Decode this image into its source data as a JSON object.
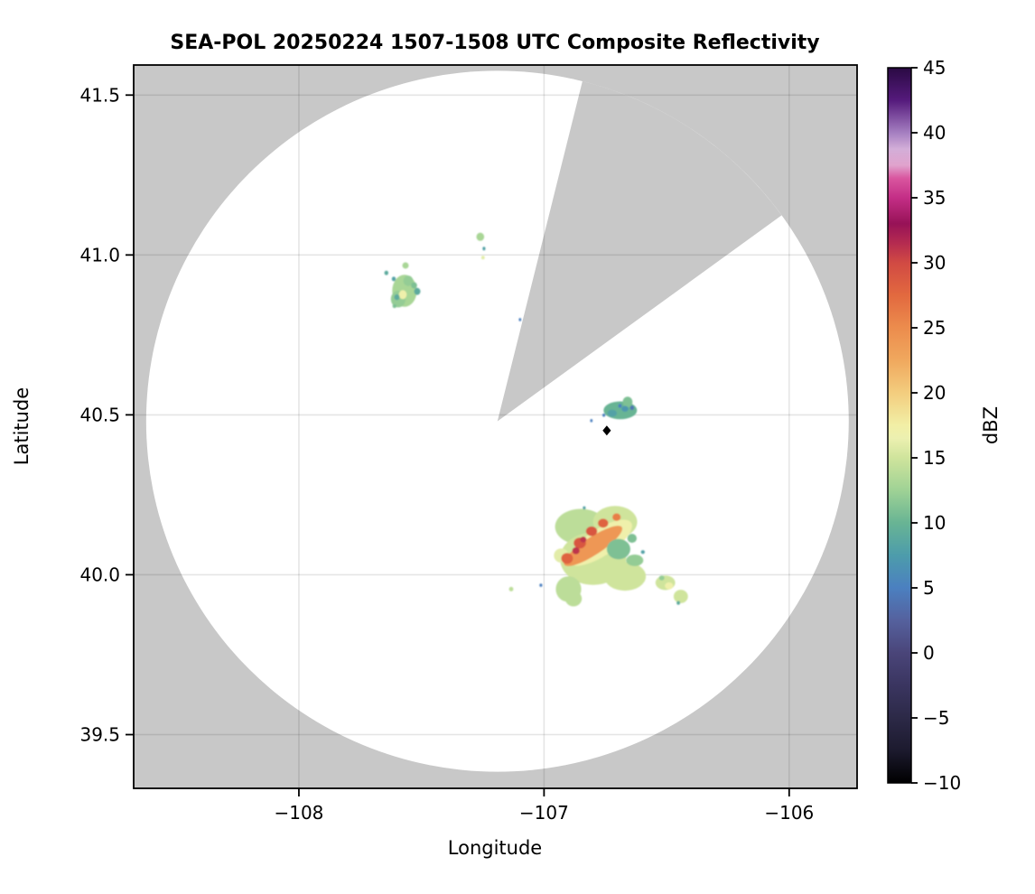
{
  "figure": {
    "title": "SEA-POL 20250224 1507-1508 UTC Composite Reflectivity",
    "xlabel": "Longitude",
    "ylabel": "Latitude",
    "colorbar_label": "dBZ"
  },
  "chart_data": {
    "type": "heatmap",
    "subtype": "radar-composite-reflectivity-map",
    "title": "SEA-POL 20250224 1507-1508 UTC Composite Reflectivity",
    "xlabel": "Longitude",
    "ylabel": "Latitude",
    "xlim": [
      -108.674,
      -105.723
    ],
    "ylim": [
      39.332,
      41.594
    ],
    "xticks": [
      -108,
      -107,
      -106
    ],
    "yticks": [
      41.5,
      41.0,
      40.5,
      40.0,
      39.5
    ],
    "grid": true,
    "colors": {
      "outside_range": "#c8c8c8",
      "coverage": "#ffffff",
      "gridline_rgba": "rgba(0,0,0,0.10)",
      "spine": "#000000"
    },
    "colorbar": {
      "label": "dBZ",
      "min": -10,
      "max": 45,
      "ticks": [
        45,
        40,
        35,
        30,
        25,
        20,
        15,
        10,
        5,
        0,
        -5,
        -10
      ],
      "stops": [
        [
          -10.0,
          "#000000"
        ],
        [
          -7.5,
          "#1c1a2e"
        ],
        [
          -5.0,
          "#2c2947"
        ],
        [
          -2.5,
          "#3a3560"
        ],
        [
          0.0,
          "#4a4579"
        ],
        [
          2.5,
          "#55619e"
        ],
        [
          5.0,
          "#4b80c0"
        ],
        [
          7.5,
          "#4d9cab"
        ],
        [
          10.0,
          "#68b494"
        ],
        [
          12.5,
          "#9fd295"
        ],
        [
          15.0,
          "#cfe49c"
        ],
        [
          16.5,
          "#ecf0b0"
        ],
        [
          17.5,
          "#f2efa6"
        ],
        [
          20.0,
          "#f3cd7e"
        ],
        [
          22.5,
          "#f0a85e"
        ],
        [
          25.0,
          "#ec8c4d"
        ],
        [
          27.5,
          "#e2693f"
        ],
        [
          30.0,
          "#d14a43"
        ],
        [
          31.5,
          "#b52b50"
        ],
        [
          33.0,
          "#971257"
        ],
        [
          35.0,
          "#c42e86"
        ],
        [
          36.5,
          "#d9569f"
        ],
        [
          37.5,
          "#e0a3cd"
        ],
        [
          38.75,
          "#d3aed8"
        ],
        [
          40.0,
          "#a57fc1"
        ],
        [
          42.5,
          "#551a7c"
        ],
        [
          45.0,
          "#2a0a43"
        ]
      ]
    },
    "radar": {
      "name": "SEA-POL",
      "lon": -107.19,
      "lat": 40.48,
      "range_lon_deg": 1.433,
      "range_lat_deg": 1.096,
      "blocked_sector_azimuth_deg": [
        14,
        54
      ]
    },
    "site_marker": {
      "shape": "diamond",
      "lon": -106.744,
      "lat": 40.451,
      "color": "#000000"
    },
    "echo_blob_format": [
      "lon",
      "lat",
      "radius_lon_deg",
      "radius_lat_deg",
      "dBZ",
      "rotation_deg_optional"
    ],
    "echoes": [
      {
        "name": "northwest-cells",
        "blobs": [
          [
            -107.569,
            40.888,
            0.05,
            0.05,
            13
          ],
          [
            -107.595,
            40.862,
            0.03,
            0.026,
            12
          ],
          [
            -107.554,
            40.919,
            0.02,
            0.016,
            12
          ],
          [
            -107.576,
            40.876,
            0.016,
            0.014,
            17
          ],
          [
            -107.6,
            40.868,
            0.011,
            0.009,
            9
          ],
          [
            -107.517,
            40.886,
            0.013,
            0.011,
            9
          ],
          [
            -107.53,
            40.905,
            0.012,
            0.01,
            11
          ],
          [
            -107.565,
            40.967,
            0.013,
            0.01,
            13
          ],
          [
            -107.643,
            40.944,
            0.008,
            0.007,
            9
          ],
          [
            -107.613,
            40.925,
            0.008,
            0.007,
            8
          ],
          [
            -107.61,
            40.84,
            0.008,
            0.006,
            11
          ]
        ]
      },
      {
        "name": "north-specks",
        "blobs": [
          [
            -107.26,
            41.057,
            0.016,
            0.013,
            13
          ],
          [
            -107.245,
            41.02,
            0.006,
            0.006,
            8
          ],
          [
            -107.249,
            40.992,
            0.007,
            0.006,
            16
          ],
          [
            -107.098,
            40.798,
            0.005,
            0.005,
            5
          ]
        ]
      },
      {
        "name": "central-small-cell",
        "blobs": [
          [
            -106.689,
            40.514,
            0.068,
            0.028,
            10
          ],
          [
            -106.659,
            40.54,
            0.02,
            0.017,
            11
          ],
          [
            -106.722,
            40.505,
            0.019,
            0.011,
            8
          ],
          [
            -106.67,
            40.519,
            0.014,
            0.009,
            7
          ],
          [
            -106.641,
            40.522,
            0.008,
            0.007,
            4
          ],
          [
            -106.69,
            40.528,
            0.007,
            0.006,
            5
          ],
          [
            -106.756,
            40.499,
            0.006,
            0.005,
            5
          ],
          [
            -106.807,
            40.482,
            0.005,
            0.005,
            5
          ]
        ]
      },
      {
        "name": "main-storm",
        "blobs": [
          [
            -106.85,
            40.15,
            0.105,
            0.056,
            14
          ],
          [
            -106.71,
            40.165,
            0.09,
            0.05,
            15
          ],
          [
            -106.8,
            40.05,
            0.135,
            0.082,
            15
          ],
          [
            -106.9,
            39.955,
            0.052,
            0.04,
            14
          ],
          [
            -106.88,
            39.925,
            0.034,
            0.024,
            14
          ],
          [
            -106.67,
            39.995,
            0.085,
            0.045,
            15
          ],
          [
            -106.93,
            40.06,
            0.03,
            0.022,
            16
          ],
          [
            -106.77,
            40.1,
            0.15,
            0.042,
            17,
            -33
          ],
          [
            -106.8,
            40.09,
            0.14,
            0.028,
            24,
            -33
          ],
          [
            -106.906,
            40.051,
            0.024,
            0.017,
            28
          ],
          [
            -106.854,
            40.099,
            0.025,
            0.017,
            29
          ],
          [
            -106.806,
            40.136,
            0.023,
            0.015,
            29
          ],
          [
            -106.759,
            40.161,
            0.021,
            0.014,
            28
          ],
          [
            -106.704,
            40.18,
            0.017,
            0.012,
            26
          ],
          [
            -106.87,
            40.075,
            0.015,
            0.011,
            31
          ],
          [
            -106.84,
            40.11,
            0.013,
            0.009,
            31
          ],
          [
            -106.696,
            40.08,
            0.048,
            0.032,
            11
          ],
          [
            -106.641,
            40.114,
            0.019,
            0.014,
            11
          ],
          [
            -106.63,
            40.045,
            0.035,
            0.018,
            12
          ],
          [
            -106.597,
            40.071,
            0.008,
            0.006,
            8
          ],
          [
            -106.836,
            40.209,
            0.006,
            0.005,
            8
          ],
          [
            -107.013,
            39.967,
            0.006,
            0.005,
            5
          ],
          [
            -107.134,
            39.955,
            0.009,
            0.007,
            14
          ]
        ]
      },
      {
        "name": "southeast-cell",
        "blobs": [
          [
            -106.505,
            39.975,
            0.04,
            0.023,
            15
          ],
          [
            -106.442,
            39.932,
            0.029,
            0.021,
            15
          ],
          [
            -106.49,
            39.965,
            0.017,
            0.011,
            17
          ],
          [
            -106.52,
            39.99,
            0.011,
            0.008,
            12
          ],
          [
            -106.452,
            39.912,
            0.007,
            0.006,
            9
          ]
        ]
      }
    ]
  }
}
